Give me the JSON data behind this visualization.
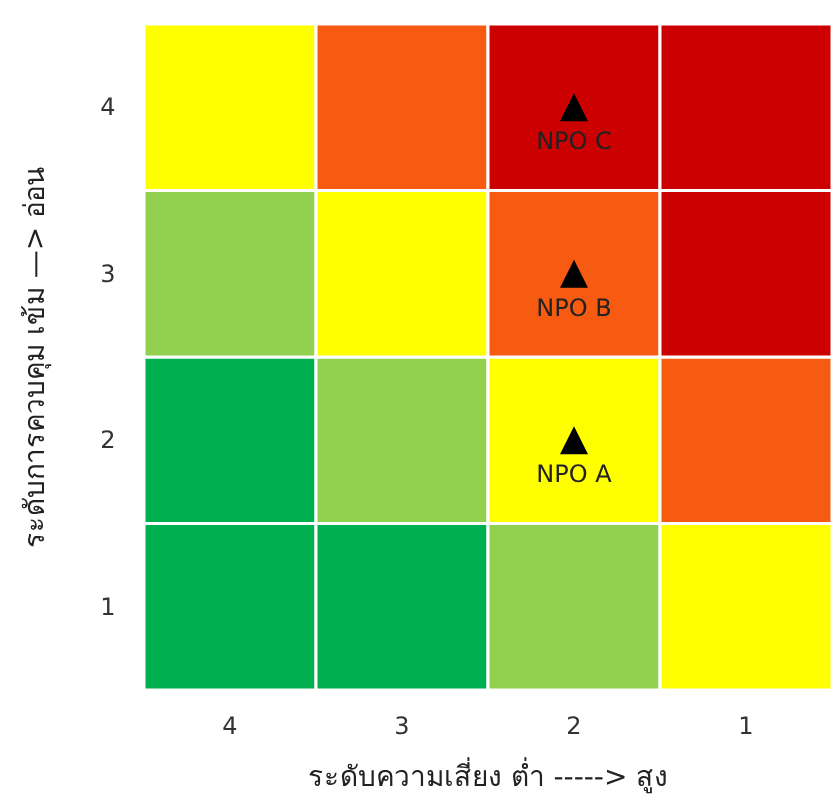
{
  "chart_data": {
    "type": "bar",
    "stacked": true,
    "xlabel": "ระดับความเสี่ยง ต่ำ -----> สูง",
    "ylabel": "ระดับการควบคุม เข้ม —> อ่อน",
    "categories": [
      "4",
      "3",
      "2",
      "1"
    ],
    "ylim": [
      0,
      4
    ],
    "yticks": [
      {
        "value": 0.5,
        "label": "1"
      },
      {
        "value": 1.5,
        "label": "2"
      },
      {
        "value": 2.5,
        "label": "3"
      },
      {
        "value": 3.5,
        "label": "4"
      }
    ],
    "series": [
      {
        "values": [
          1,
          1,
          1,
          1
        ],
        "colors": [
          "#00b050",
          "#00b050",
          "#92d050",
          "#ffff00"
        ]
      },
      {
        "values": [
          1,
          1,
          1,
          1
        ],
        "colors": [
          "#00b050",
          "#92d050",
          "#ffff00",
          "#f75b12"
        ]
      },
      {
        "values": [
          1,
          1,
          1,
          1
        ],
        "colors": [
          "#92d050",
          "#ffff00",
          "#f75b12",
          "#cc0000"
        ]
      },
      {
        "values": [
          1,
          1,
          1,
          1
        ],
        "colors": [
          "#ffff00",
          "#f75b12",
          "#cc0000",
          "#cc0000"
        ]
      },
      {
        "type": "scatter",
        "marker": "triangle",
        "color": "#000000",
        "x": [
          "2",
          "2",
          "2"
        ],
        "values": [
          1.5,
          2.5,
          3.5
        ]
      }
    ],
    "annotations": [
      {
        "text": "NPO A",
        "x": "2",
        "y": 1.5
      },
      {
        "text": "NPO B",
        "x": "2",
        "y": 2.5
      },
      {
        "text": "NPO C",
        "x": "2",
        "y": 3.5
      }
    ]
  }
}
